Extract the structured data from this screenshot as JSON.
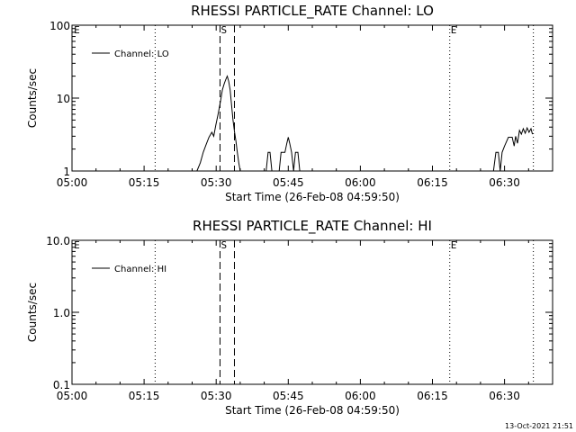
{
  "footer": {
    "timestamp": "13-Oct-2021 21:51"
  },
  "chart_data": [
    {
      "type": "line",
      "title": "RHESSI PARTICLE_RATE Channel: LO",
      "xlabel": "Start Time (26-Feb-08 04:59:50)",
      "ylabel": "Counts/sec",
      "yscale": "log",
      "ylim": [
        1,
        100
      ],
      "xlim": [
        0,
        100
      ],
      "x_ticks": [
        {
          "v": 0,
          "label": "05:00"
        },
        {
          "v": 15,
          "label": "05:15"
        },
        {
          "v": 30,
          "label": "05:30"
        },
        {
          "v": 45,
          "label": "05:45"
        },
        {
          "v": 60,
          "label": "06:00"
        },
        {
          "v": 75,
          "label": "06:15"
        },
        {
          "v": 90,
          "label": "06:30"
        }
      ],
      "y_ticks": [
        {
          "v": 1,
          "label": "1"
        },
        {
          "v": 10,
          "label": "10"
        },
        {
          "v": 100,
          "label": "100"
        }
      ],
      "legend": {
        "position": "top-left",
        "entries": [
          "Channel: LO"
        ]
      },
      "markers": [
        {
          "x": 0.2,
          "label": "E"
        },
        {
          "x": 30.8,
          "label": "S"
        },
        {
          "x": 78.6,
          "label": "E"
        }
      ],
      "vlines": [
        {
          "x": 17.3,
          "style": "dotted"
        },
        {
          "x": 30.8,
          "style": "dashed"
        },
        {
          "x": 33.8,
          "style": "dashed"
        },
        {
          "x": 78.6,
          "style": "dotted"
        },
        {
          "x": 96.0,
          "style": "dotted"
        }
      ],
      "series": [
        {
          "name": "Channel: LO",
          "segments": [
            [
              [
                26.0,
                1.0
              ],
              [
                26.7,
                1.3
              ],
              [
                27.3,
                1.8
              ],
              [
                27.9,
                2.3
              ],
              [
                28.5,
                2.9
              ],
              [
                29.1,
                3.4
              ],
              [
                29.5,
                3.0
              ],
              [
                29.9,
                4.2
              ],
              [
                30.4,
                6.0
              ],
              [
                30.9,
                9.0
              ],
              [
                31.3,
                13.0
              ],
              [
                31.7,
                16.0
              ],
              [
                32.0,
                18.0
              ],
              [
                32.3,
                20.0
              ],
              [
                32.6,
                17.0
              ],
              [
                32.9,
                13.0
              ],
              [
                33.2,
                8.0
              ],
              [
                33.5,
                5.0
              ],
              [
                33.8,
                3.5
              ],
              [
                34.1,
                2.6
              ],
              [
                34.4,
                1.8
              ],
              [
                34.7,
                1.3
              ],
              [
                35.0,
                1.0
              ]
            ],
            [
              [
                40.4,
                1.0
              ],
              [
                40.8,
                1.8
              ],
              [
                41.2,
                1.8
              ],
              [
                41.6,
                1.0
              ]
            ],
            [
              [
                43.1,
                1.0
              ],
              [
                43.5,
                1.8
              ],
              [
                44.3,
                1.8
              ],
              [
                44.7,
                2.4
              ],
              [
                45.0,
                2.9
              ],
              [
                45.3,
                2.4
              ],
              [
                45.7,
                1.8
              ],
              [
                46.1,
                1.0
              ],
              [
                46.5,
                1.8
              ],
              [
                47.0,
                1.8
              ],
              [
                47.4,
                1.0
              ]
            ],
            [
              [
                87.7,
                1.0
              ],
              [
                88.2,
                1.8
              ],
              [
                88.7,
                1.8
              ],
              [
                89.1,
                1.0
              ],
              [
                89.5,
                1.8
              ],
              [
                90.0,
                2.2
              ],
              [
                90.8,
                2.9
              ],
              [
                91.6,
                2.9
              ],
              [
                92.0,
                2.2
              ],
              [
                92.3,
                3.0
              ],
              [
                92.7,
                2.4
              ],
              [
                93.1,
                3.6
              ],
              [
                93.5,
                3.2
              ],
              [
                93.9,
                3.8
              ],
              [
                94.3,
                3.3
              ],
              [
                94.7,
                3.9
              ],
              [
                95.1,
                3.4
              ],
              [
                95.5,
                3.8
              ],
              [
                95.8,
                3.2
              ]
            ]
          ]
        }
      ]
    },
    {
      "type": "line",
      "title": "RHESSI PARTICLE_RATE Channel: HI",
      "xlabel": "Start Time (26-Feb-08 04:59:50)",
      "ylabel": "Counts/sec",
      "yscale": "log",
      "ylim": [
        0.1,
        10
      ],
      "xlim": [
        0,
        100
      ],
      "x_ticks": [
        {
          "v": 0,
          "label": "05:00"
        },
        {
          "v": 15,
          "label": "05:15"
        },
        {
          "v": 30,
          "label": "05:30"
        },
        {
          "v": 45,
          "label": "05:45"
        },
        {
          "v": 60,
          "label": "06:00"
        },
        {
          "v": 75,
          "label": "06:15"
        },
        {
          "v": 90,
          "label": "06:30"
        }
      ],
      "y_ticks": [
        {
          "v": 0.1,
          "label": "0.1"
        },
        {
          "v": 1,
          "label": "1.0"
        },
        {
          "v": 10,
          "label": "10.0"
        }
      ],
      "legend": {
        "position": "top-left",
        "entries": [
          "Channel: HI"
        ]
      },
      "markers": [
        {
          "x": 0.2,
          "label": "E"
        },
        {
          "x": 30.8,
          "label": "S"
        },
        {
          "x": 78.6,
          "label": "E"
        }
      ],
      "vlines": [
        {
          "x": 17.3,
          "style": "dotted"
        },
        {
          "x": 30.8,
          "style": "dashed"
        },
        {
          "x": 33.8,
          "style": "dashed"
        },
        {
          "x": 78.6,
          "style": "dotted"
        },
        {
          "x": 96.0,
          "style": "dotted"
        }
      ],
      "series": [
        {
          "name": "Channel: HI",
          "segments": []
        }
      ]
    }
  ]
}
